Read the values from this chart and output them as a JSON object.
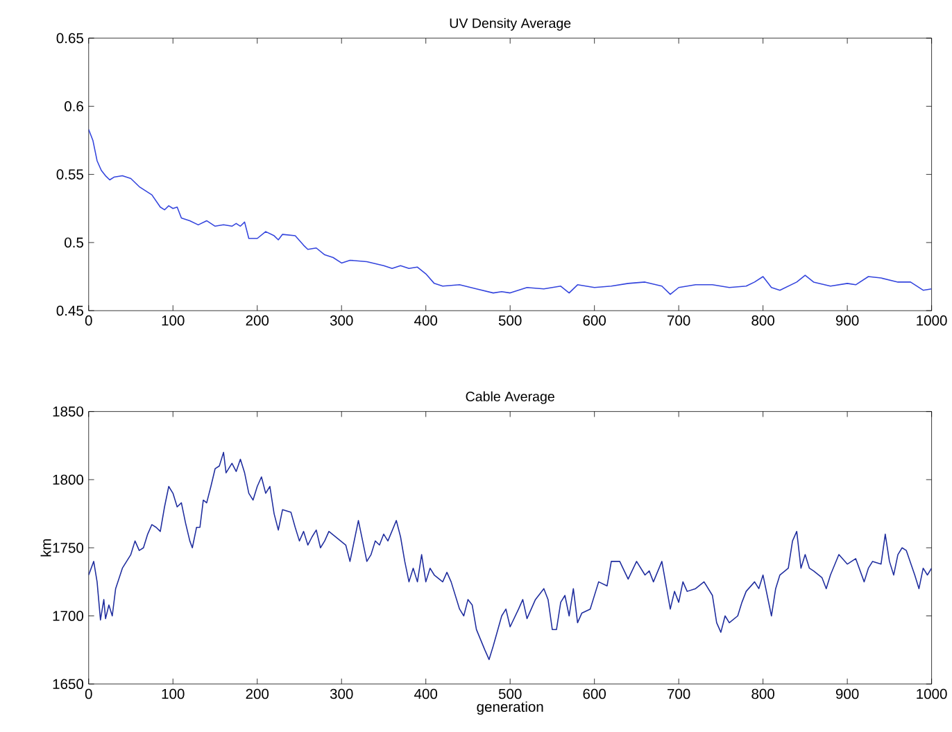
{
  "chart_data": [
    {
      "type": "line",
      "title": "UV Density Average",
      "color": "#3344dd",
      "x": [
        0,
        5,
        10,
        15,
        20,
        25,
        30,
        40,
        50,
        60,
        70,
        75,
        85,
        90,
        95,
        100,
        105,
        110,
        120,
        130,
        140,
        150,
        160,
        170,
        175,
        180,
        185,
        190,
        200,
        210,
        220,
        225,
        230,
        245,
        255,
        260,
        270,
        280,
        290,
        300,
        310,
        330,
        350,
        360,
        370,
        380,
        390,
        400,
        410,
        420,
        440,
        460,
        480,
        490,
        500,
        520,
        540,
        560,
        570,
        580,
        600,
        620,
        640,
        660,
        680,
        690,
        700,
        720,
        740,
        760,
        780,
        790,
        800,
        810,
        820,
        840,
        850,
        860,
        880,
        900,
        910,
        925,
        940,
        960,
        975,
        990,
        1000
      ],
      "values": [
        0.583,
        0.575,
        0.56,
        0.553,
        0.549,
        0.546,
        0.548,
        0.549,
        0.547,
        0.541,
        0.537,
        0.535,
        0.526,
        0.524,
        0.527,
        0.525,
        0.526,
        0.518,
        0.516,
        0.513,
        0.516,
        0.512,
        0.513,
        0.512,
        0.514,
        0.512,
        0.515,
        0.503,
        0.503,
        0.508,
        0.505,
        0.502,
        0.506,
        0.505,
        0.498,
        0.495,
        0.496,
        0.491,
        0.489,
        0.485,
        0.487,
        0.486,
        0.483,
        0.481,
        0.483,
        0.481,
        0.482,
        0.477,
        0.47,
        0.468,
        0.469,
        0.466,
        0.463,
        0.464,
        0.463,
        0.467,
        0.466,
        0.468,
        0.463,
        0.469,
        0.467,
        0.468,
        0.47,
        0.471,
        0.468,
        0.462,
        0.467,
        0.469,
        0.469,
        0.467,
        0.468,
        0.471,
        0.475,
        0.467,
        0.465,
        0.471,
        0.476,
        0.471,
        0.468,
        0.47,
        0.469,
        0.475,
        0.474,
        0.471,
        0.471,
        0.465,
        0.466
      ],
      "xlim": [
        0,
        1000
      ],
      "xticks": [
        0,
        100,
        200,
        300,
        400,
        500,
        600,
        700,
        800,
        900,
        1000
      ],
      "ylim": [
        0.45,
        0.65
      ],
      "yticks": [
        0.45,
        0.5,
        0.55,
        0.6,
        0.65
      ],
      "grid": false
    },
    {
      "type": "line",
      "title": "Cable Average",
      "xlabel": "generation",
      "ylabel": "km",
      "color": "#1f2d9e",
      "x": [
        0,
        3,
        6,
        10,
        14,
        18,
        20,
        24,
        28,
        32,
        40,
        45,
        50,
        55,
        60,
        65,
        70,
        75,
        80,
        85,
        90,
        95,
        100,
        105,
        110,
        115,
        120,
        123,
        128,
        132,
        136,
        140,
        145,
        150,
        155,
        160,
        163,
        170,
        175,
        180,
        185,
        190,
        195,
        200,
        205,
        210,
        215,
        220,
        225,
        230,
        240,
        245,
        250,
        255,
        260,
        265,
        270,
        275,
        280,
        285,
        295,
        305,
        310,
        315,
        320,
        325,
        330,
        335,
        340,
        345,
        350,
        355,
        365,
        370,
        375,
        380,
        385,
        390,
        395,
        400,
        405,
        410,
        420,
        425,
        430,
        440,
        445,
        450,
        455,
        460,
        470,
        475,
        480,
        490,
        495,
        500,
        510,
        515,
        520,
        530,
        540,
        545,
        550,
        555,
        560,
        565,
        570,
        575,
        580,
        585,
        595,
        600,
        605,
        615,
        620,
        630,
        640,
        650,
        660,
        665,
        670,
        680,
        690,
        695,
        700,
        705,
        710,
        720,
        730,
        740,
        745,
        750,
        755,
        760,
        770,
        775,
        780,
        790,
        795,
        800,
        805,
        810,
        815,
        820,
        830,
        835,
        840,
        845,
        850,
        855,
        860,
        870,
        875,
        880,
        890,
        900,
        910,
        920,
        925,
        930,
        940,
        945,
        950,
        955,
        960,
        965,
        970,
        980,
        985,
        990,
        995,
        1000
      ],
      "values": [
        1730,
        1735,
        1740,
        1725,
        1697,
        1712,
        1698,
        1708,
        1700,
        1720,
        1735,
        1740,
        1745,
        1755,
        1748,
        1750,
        1760,
        1767,
        1765,
        1762,
        1780,
        1795,
        1790,
        1780,
        1783,
        1768,
        1755,
        1750,
        1765,
        1765,
        1785,
        1783,
        1795,
        1808,
        1810,
        1820,
        1805,
        1812,
        1806,
        1815,
        1805,
        1790,
        1785,
        1795,
        1802,
        1790,
        1795,
        1775,
        1763,
        1778,
        1776,
        1765,
        1755,
        1762,
        1752,
        1758,
        1763,
        1750,
        1755,
        1762,
        1757,
        1752,
        1740,
        1755,
        1770,
        1755,
        1740,
        1745,
        1755,
        1752,
        1760,
        1755,
        1770,
        1758,
        1740,
        1725,
        1735,
        1725,
        1745,
        1725,
        1735,
        1730,
        1725,
        1732,
        1725,
        1705,
        1700,
        1712,
        1708,
        1690,
        1675,
        1668,
        1678,
        1700,
        1705,
        1692,
        1705,
        1712,
        1698,
        1712,
        1720,
        1712,
        1690,
        1690,
        1710,
        1715,
        1700,
        1720,
        1695,
        1702,
        1705,
        1715,
        1725,
        1722,
        1740,
        1740,
        1727,
        1740,
        1730,
        1733,
        1725,
        1740,
        1705,
        1718,
        1710,
        1725,
        1718,
        1720,
        1725,
        1715,
        1695,
        1688,
        1700,
        1695,
        1700,
        1710,
        1718,
        1725,
        1720,
        1730,
        1715,
        1700,
        1720,
        1730,
        1735,
        1755,
        1762,
        1735,
        1745,
        1735,
        1733,
        1728,
        1720,
        1730,
        1745,
        1738,
        1742,
        1725,
        1735,
        1740,
        1738,
        1760,
        1740,
        1730,
        1745,
        1750,
        1748,
        1730,
        1720,
        1735,
        1730,
        1735
      ],
      "xlim": [
        0,
        1000
      ],
      "xticks": [
        0,
        100,
        200,
        300,
        400,
        500,
        600,
        700,
        800,
        900,
        1000
      ],
      "ylim": [
        1650,
        1850
      ],
      "yticks": [
        1650,
        1700,
        1750,
        1800,
        1850
      ],
      "grid": false
    }
  ]
}
